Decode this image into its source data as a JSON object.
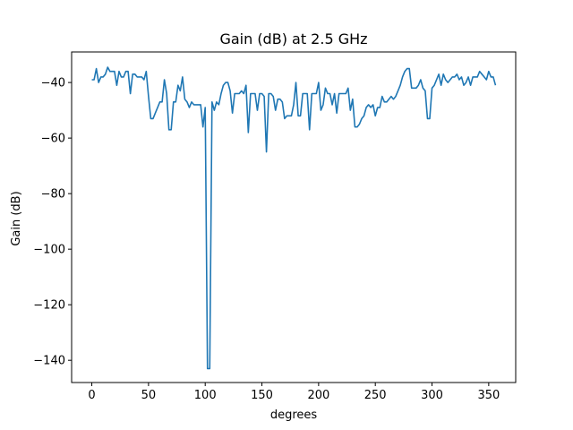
{
  "chart_data": {
    "type": "line",
    "title": "Gain (dB) at 2.5 GHz",
    "xlabel": "degrees",
    "ylabel": "Gain (dB)",
    "xlim": [
      -17.8,
      373.8
    ],
    "ylim": [
      -148,
      -29
    ],
    "xticks": [
      0,
      50,
      100,
      150,
      200,
      250,
      300,
      350
    ],
    "yticks": [
      -140,
      -120,
      -100,
      -80,
      -60,
      -40
    ],
    "ytick_labels": [
      "−140",
      "−120",
      "−100",
      "−80",
      "−60",
      "−40"
    ],
    "grid": false,
    "color": "#1f77b4",
    "series": [
      {
        "x": [
          0,
          2,
          4,
          6,
          8,
          10,
          12,
          14,
          16,
          18,
          20,
          22,
          24,
          26,
          28,
          30,
          32,
          34,
          36,
          38,
          40,
          42,
          44,
          46,
          48,
          50,
          52,
          54,
          56,
          58,
          60,
          62,
          64,
          66,
          68,
          70,
          72,
          74,
          76,
          78,
          80,
          82,
          84,
          86,
          88,
          90,
          92,
          94,
          96,
          98,
          100,
          102,
          104,
          106,
          108,
          110,
          112,
          114,
          116,
          118,
          120,
          122,
          124,
          126,
          128,
          130,
          132,
          134,
          136,
          138,
          140,
          142,
          144,
          146,
          148,
          150,
          152,
          154,
          156,
          158,
          160,
          162,
          164,
          166,
          168,
          170,
          172,
          174,
          176,
          178,
          180,
          182,
          184,
          186,
          188,
          190,
          192,
          194,
          196,
          198,
          200,
          202,
          204,
          206,
          208,
          210,
          212,
          214,
          216,
          218,
          220,
          222,
          224,
          226,
          228,
          230,
          232,
          234,
          236,
          238,
          240,
          242,
          244,
          246,
          248,
          250,
          252,
          254,
          256,
          258,
          260,
          262,
          264,
          266,
          268,
          270,
          272,
          274,
          276,
          278,
          280,
          282,
          284,
          286,
          288,
          290,
          292,
          294,
          296,
          298,
          300,
          302,
          304,
          306,
          308,
          310,
          312,
          314,
          316,
          318,
          320,
          322,
          324,
          326,
          328,
          330,
          332,
          334,
          336,
          338,
          340,
          342,
          344,
          346,
          348,
          350,
          352,
          354,
          356
        ],
        "values": [
          -39,
          -39,
          -35,
          -40,
          -38,
          -38,
          -37,
          -34.5,
          -36,
          -36,
          -36,
          -41,
          -36,
          -38,
          -38,
          -36,
          -36,
          -44,
          -37,
          -37,
          -38,
          -38,
          -38,
          -39,
          -36,
          -45,
          -53,
          -53,
          -51,
          -49,
          -47,
          -47,
          -39,
          -44,
          -57,
          -57,
          -47,
          -47,
          -41,
          -43,
          -38,
          -46,
          -47,
          -49,
          -47,
          -48,
          -48,
          -48,
          -48,
          -56,
          -49,
          -143,
          -143,
          -47,
          -50,
          -47,
          -48,
          -44,
          -41,
          -40,
          -40,
          -43,
          -51,
          -44,
          -44,
          -44,
          -43,
          -44,
          -41,
          -58,
          -44,
          -44,
          -44,
          -50,
          -44,
          -44,
          -45,
          -65,
          -44,
          -44,
          -45,
          -50,
          -46,
          -46,
          -47,
          -53,
          -52,
          -52,
          -52,
          -48,
          -40,
          -52,
          -52,
          -44,
          -44,
          -44,
          -57,
          -44,
          -44,
          -44,
          -40,
          -50,
          -48,
          -42,
          -44,
          -44,
          -48,
          -44,
          -51,
          -44,
          -44,
          -44,
          -44,
          -42,
          -50,
          -46,
          -56,
          -56,
          -55,
          -53,
          -52,
          -49,
          -48,
          -49,
          -48,
          -52,
          -49,
          -49,
          -45,
          -47,
          -47,
          -46,
          -45,
          -46,
          -45,
          -43,
          -41,
          -38,
          -36,
          -35,
          -35,
          -42,
          -42,
          -42,
          -41,
          -39,
          -42,
          -43,
          -53,
          -53,
          -42,
          -41,
          -39,
          -37,
          -41,
          -37,
          -39,
          -40,
          -39,
          -38,
          -38,
          -37,
          -39,
          -38,
          -41,
          -40,
          -38,
          -41,
          -38,
          -38,
          -38,
          -36,
          -37,
          -38,
          -39,
          -36,
          -38,
          -38,
          -41
        ]
      }
    ]
  }
}
